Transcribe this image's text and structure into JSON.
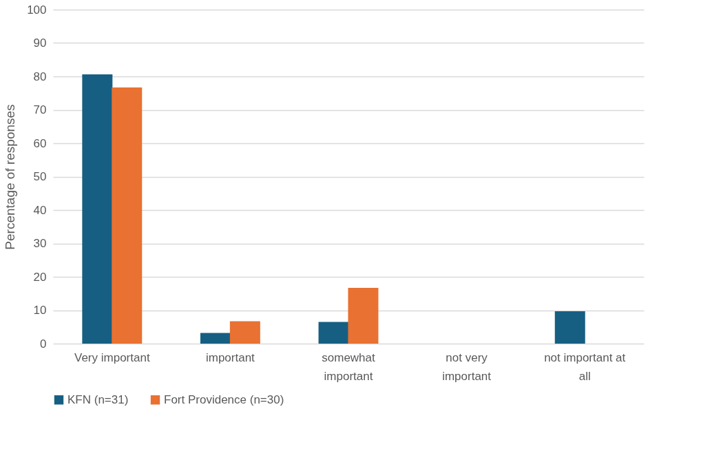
{
  "chart_data": {
    "type": "bar",
    "ylabel": "Percentage of responses",
    "categories": [
      "Very important",
      "important",
      "somewhat\nimportant",
      "not very\nimportant",
      "not important at\nall"
    ],
    "series": [
      {
        "name": "KFN (n=31)",
        "color": "#175f82",
        "values": [
          80.6,
          3.2,
          6.5,
          0,
          9.7
        ]
      },
      {
        "name": "Fort Providence (n=30)",
        "color": "#e97132",
        "values": [
          76.7,
          6.7,
          16.7,
          0,
          0
        ]
      }
    ],
    "ylim": [
      0,
      100
    ],
    "yticks": [
      0,
      10,
      20,
      30,
      40,
      50,
      60,
      70,
      80,
      90,
      100
    ],
    "grid": "y",
    "legend": "bottom"
  }
}
